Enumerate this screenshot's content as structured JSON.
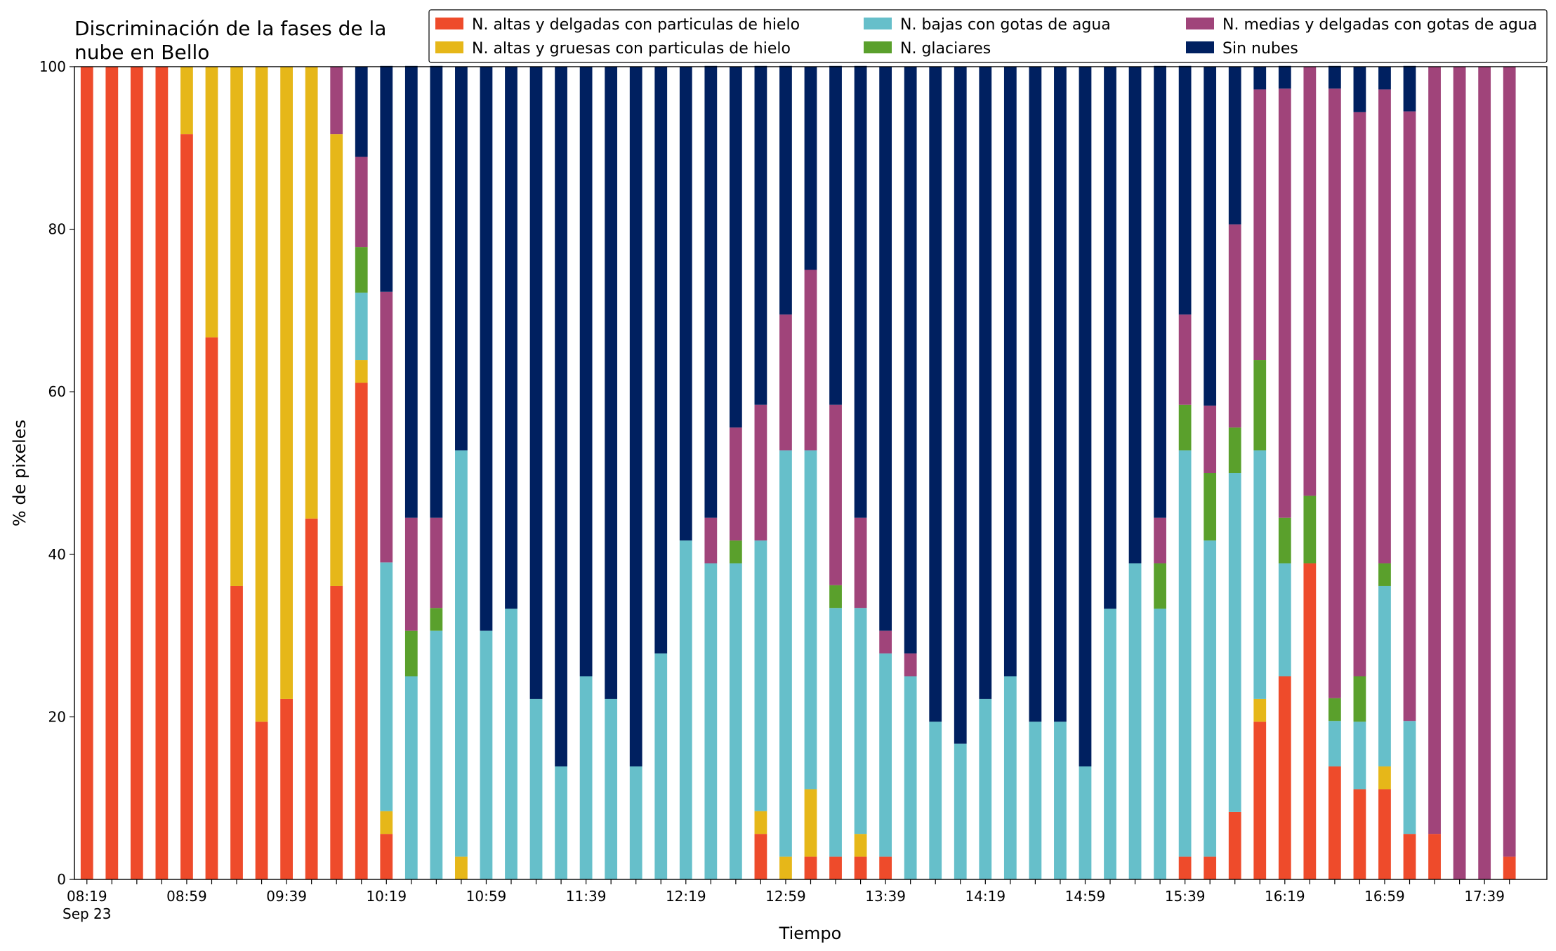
{
  "chart_data": {
    "type": "stacked_bar",
    "title": [
      "Discriminación de la fases de la",
      "nube en Bello"
    ],
    "xlabel": "Tiempo",
    "ylabel": "% de pixeles",
    "x_date_label": "Sep 23",
    "categories": [
      "08:19",
      null,
      null,
      null,
      "08:59",
      null,
      null,
      null,
      "09:39",
      null,
      null,
      null,
      "10:19",
      null,
      null,
      null,
      "10:59",
      null,
      null,
      null,
      "11:39",
      null,
      null,
      null,
      "12:19",
      null,
      null,
      null,
      "12:59",
      null,
      null,
      null,
      "13:39",
      null,
      null,
      null,
      "14:19",
      null,
      null,
      null,
      "14:59",
      null,
      null,
      null,
      "15:39",
      null,
      null,
      null,
      "16:19",
      null,
      null,
      null,
      "16:59",
      null,
      null,
      null,
      "17:39",
      null
    ],
    "ylim": [
      0,
      100
    ],
    "yticks": [
      0,
      20,
      40,
      60,
      80,
      100
    ],
    "legend": "upper right",
    "series": [
      {
        "name": "N. altas y delgadas con particulas de hielo",
        "color": "#ee4b2b",
        "values": [
          100,
          100,
          100,
          100,
          91.7,
          66.7,
          36.1,
          19.4,
          22.2,
          44.4,
          36.1,
          61.1,
          5.6,
          0,
          0,
          0,
          0,
          0,
          0,
          0,
          0,
          0,
          0,
          0,
          0,
          0,
          0,
          5.6,
          0,
          2.8,
          2.8,
          2.8,
          2.8,
          0,
          0,
          0,
          0,
          0,
          0,
          0,
          0,
          0,
          0,
          0,
          2.8,
          2.8,
          8.3,
          19.4,
          25,
          38.9,
          13.9,
          11.1,
          11.1,
          5.6,
          5.6,
          0,
          0,
          2.8
        ]
      },
      {
        "name": "N. altas y gruesas con particulas de hielo",
        "color": "#e6b719",
        "values": [
          0,
          0,
          0,
          0,
          8.3,
          33.3,
          63.9,
          80.6,
          77.8,
          55.6,
          55.6,
          2.8,
          2.8,
          0,
          0,
          2.8,
          0,
          0,
          0,
          0,
          0,
          0,
          0,
          0,
          0,
          0,
          0,
          2.8,
          2.8,
          8.3,
          0,
          2.8,
          0,
          0,
          0,
          0,
          0,
          0,
          0,
          0,
          0,
          0,
          0,
          0,
          0,
          0,
          0,
          2.8,
          0,
          0,
          0,
          0,
          2.8,
          0,
          0,
          0,
          0,
          0
        ]
      },
      {
        "name": "N. bajas con gotas de agua",
        "color": "#66bfca",
        "values": [
          0,
          0,
          0,
          0,
          0,
          0,
          0,
          0,
          0,
          0,
          0,
          8.3,
          30.6,
          25,
          30.6,
          50,
          30.6,
          33.3,
          22.2,
          13.9,
          25,
          22.2,
          13.9,
          27.8,
          41.7,
          38.9,
          38.9,
          33.3,
          50,
          41.7,
          30.6,
          27.8,
          25,
          25,
          19.4,
          16.7,
          22.2,
          25,
          19.4,
          19.4,
          13.9,
          33.3,
          38.9,
          33.3,
          50,
          38.9,
          41.7,
          30.6,
          13.9,
          0,
          5.6,
          8.3,
          22.2,
          13.9,
          0,
          0,
          0,
          0
        ]
      },
      {
        "name": "N. glaciares",
        "color": "#5aa02c",
        "values": [
          0,
          0,
          0,
          0,
          0,
          0,
          0,
          0,
          0,
          0,
          0,
          5.6,
          0,
          5.6,
          2.8,
          0,
          0,
          0,
          0,
          0,
          0,
          0,
          0,
          0,
          0,
          0,
          2.8,
          0,
          0,
          0,
          2.8,
          0,
          0,
          0,
          0,
          0,
          0,
          0,
          0,
          0,
          0,
          0,
          0,
          5.6,
          5.6,
          8.3,
          5.6,
          11.1,
          5.6,
          8.3,
          2.8,
          5.6,
          2.8,
          0,
          0,
          0,
          0,
          0
        ]
      },
      {
        "name": "N. medias y delgadas con gotas de agua",
        "color": "#a0447a",
        "values": [
          0,
          0,
          0,
          0,
          0,
          0,
          0,
          0,
          0,
          0,
          8.3,
          11.1,
          33.3,
          13.9,
          11.1,
          0,
          0,
          0,
          0,
          0,
          0,
          0,
          0,
          0,
          0,
          5.6,
          13.9,
          16.7,
          16.7,
          22.2,
          22.2,
          11.1,
          2.8,
          2.8,
          0,
          0,
          0,
          0,
          0,
          0,
          0,
          0,
          0,
          5.6,
          11.1,
          8.3,
          25,
          33.3,
          52.8,
          52.8,
          75,
          69.4,
          58.3,
          75,
          94.4,
          100,
          100,
          97.2
        ]
      },
      {
        "name": "Sin nubes",
        "color": "#002060",
        "values": [
          0,
          0,
          0,
          0,
          0,
          0,
          0,
          0,
          0,
          0,
          0,
          11.1,
          27.8,
          55.6,
          55.6,
          47.2,
          69.4,
          66.7,
          77.8,
          86.1,
          75,
          77.8,
          86.1,
          72.2,
          58.3,
          55.6,
          44.4,
          41.7,
          30.6,
          25,
          41.7,
          55.6,
          69.4,
          72.2,
          80.6,
          83.3,
          77.8,
          75,
          80.6,
          80.6,
          86.1,
          66.7,
          61.1,
          55.6,
          30.6,
          41.7,
          19.4,
          2.8,
          2.8,
          0,
          2.8,
          5.6,
          2.8,
          5.6,
          0,
          0,
          0,
          0
        ]
      }
    ]
  }
}
